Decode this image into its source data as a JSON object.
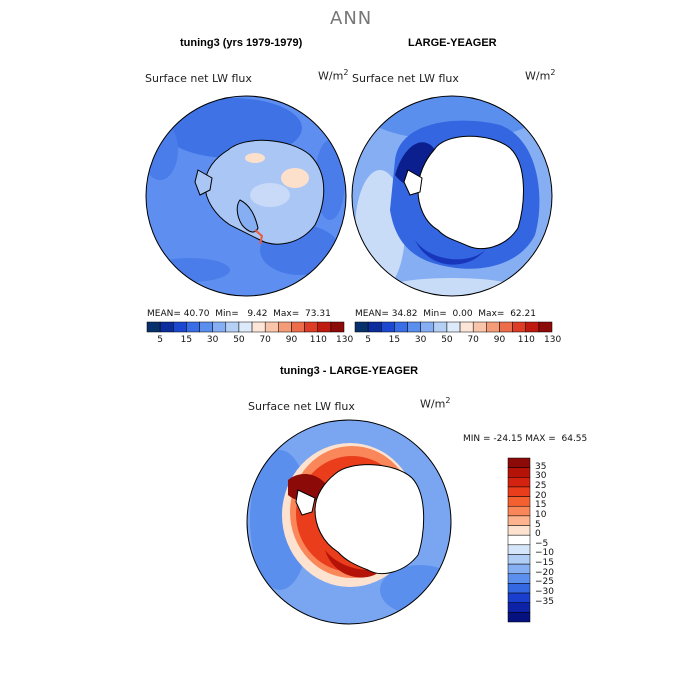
{
  "page_title": "ANN",
  "chart_data": [
    {
      "type": "heatmap",
      "title": "tuning3 (yrs 1979-1979)",
      "variable": "Surface net LW flux",
      "units": "W/m",
      "units_exp": "2",
      "stats": {
        "mean_label": "MEAN=",
        "mean": "40.70",
        "min_label": "Min=",
        "min": "9.42",
        "max_label": "Max=",
        "max": "73.31"
      },
      "colorbar": {
        "labels": [
          "5",
          "15",
          "30",
          "50",
          "70",
          "90",
          "110",
          "130"
        ],
        "colors": [
          "#08306b",
          "#0c2c9c",
          "#1c48d0",
          "#3a6ee6",
          "#5b8fee",
          "#86aef2",
          "#b6cff5",
          "#ddeafa",
          "#fde6d8",
          "#f9c5aa",
          "#f49c78",
          "#ec6d4c",
          "#dd3c26",
          "#bf1a10",
          "#8c0a08"
        ]
      }
    },
    {
      "type": "heatmap",
      "title": "LARGE-YEAGER",
      "variable": "Surface net LW flux",
      "units": "W/m",
      "units_exp": "2",
      "stats": {
        "mean_label": "MEAN=",
        "mean": "34.82",
        "min_label": "Min=",
        "min": "0.00",
        "max_label": "Max=",
        "max": "62.21"
      },
      "colorbar": {
        "labels": [
          "5",
          "15",
          "30",
          "50",
          "70",
          "90",
          "110",
          "130"
        ],
        "colors": [
          "#08306b",
          "#0c2c9c",
          "#1c48d0",
          "#3a6ee6",
          "#5b8fee",
          "#86aef2",
          "#b6cff5",
          "#ddeafa",
          "#fde6d8",
          "#f9c5aa",
          "#f49c78",
          "#ec6d4c",
          "#dd3c26",
          "#bf1a10",
          "#8c0a08"
        ]
      }
    },
    {
      "type": "heatmap",
      "title": "tuning3 - LARGE-YEAGER",
      "variable": "Surface net LW flux",
      "units": "W/m",
      "units_exp": "2",
      "stats_text": "MIN = -24.15 MAX =  64.55",
      "colorbar": {
        "labels": [
          "35",
          "30",
          "25",
          "20",
          "15",
          "10",
          "5",
          "0",
          "−5",
          "−10",
          "−15",
          "−20",
          "−25",
          "−30",
          "−35"
        ],
        "colors": [
          "#8c0a08",
          "#b51208",
          "#d42210",
          "#ea3d1c",
          "#f4602f",
          "#f9875a",
          "#fcb38e",
          "#fde2cf",
          "#ffffff",
          "#d5e6fa",
          "#b0cdf5",
          "#86aef2",
          "#5b8fee",
          "#3468e2",
          "#1a3fcf",
          "#0e22a8",
          "#061180"
        ]
      }
    }
  ]
}
